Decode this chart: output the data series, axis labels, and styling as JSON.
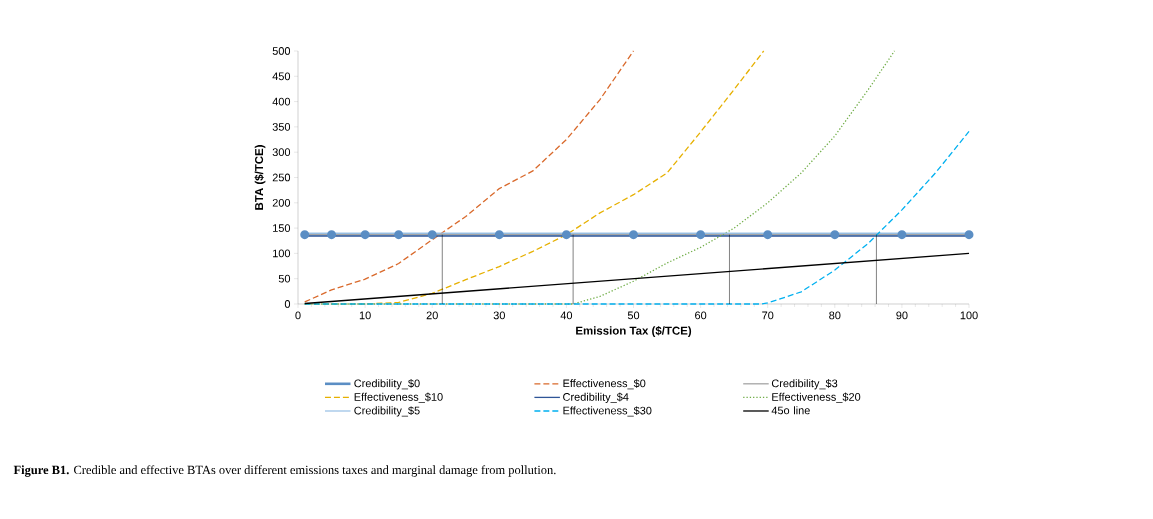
{
  "chart_data": {
    "type": "line",
    "xlabel": "Emission Tax ($/TCE)",
    "ylabel": "BTA ($/TCE)",
    "xlim": [
      0,
      100
    ],
    "xticks": [
      0,
      10,
      20,
      30,
      40,
      50,
      60,
      70,
      80,
      90,
      100
    ],
    "ylim": [
      0,
      500
    ],
    "yticks": [
      0,
      50,
      100,
      150,
      200,
      250,
      300,
      350,
      400,
      450,
      500
    ],
    "grid": false,
    "legend": "bottom",
    "line_style": "solid",
    "marker": "none",
    "series": [
      {
        "name": "Credibility_$0",
        "color": "#5b8ec4",
        "marker": "circle",
        "x": [
          1,
          5,
          10,
          15,
          20,
          30,
          40,
          50,
          60,
          70,
          80,
          90,
          100
        ],
        "values": [
          137,
          137,
          137,
          137,
          137,
          137,
          137,
          137,
          137,
          137,
          137,
          137,
          137
        ]
      },
      {
        "name": "Effectiveness_$0",
        "color": "#d9692b",
        "line_style": "dashed",
        "x": [
          1,
          5,
          10,
          15,
          20,
          25,
          30,
          35,
          40,
          45,
          50
        ],
        "values": [
          4,
          28,
          49,
          80,
          127,
          173,
          228,
          263,
          325,
          404,
          500
        ]
      },
      {
        "name": "Credibility_$3",
        "color": "#a5a5a5",
        "x": [
          1,
          100
        ],
        "values": [
          137,
          137
        ]
      },
      {
        "name": "Effectiveness_$10",
        "color": "#e6b000",
        "line_style": "dashed",
        "x": [
          1,
          10,
          15,
          20,
          25,
          30,
          35,
          40,
          45,
          50,
          55,
          60,
          65,
          69.4
        ],
        "values": [
          0,
          0,
          3,
          21,
          48,
          74,
          104,
          137,
          180,
          216,
          259,
          340,
          424,
          500
        ]
      },
      {
        "name": "Credibility_$4",
        "color": "#2f5597",
        "x": [
          1,
          100
        ],
        "values": [
          134,
          134
        ]
      },
      {
        "name": "Effectiveness_$20",
        "color": "#70ad47",
        "line_style": "dotted",
        "x": [
          1,
          41,
          45,
          50,
          55,
          60,
          65,
          70,
          75,
          80,
          85,
          88.9
        ],
        "values": [
          0,
          0,
          15,
          45,
          81,
          112,
          150,
          200,
          259,
          332,
          424,
          500
        ]
      },
      {
        "name": "Credibility_$5",
        "color": "#9dc3e6",
        "x": [
          1,
          100
        ],
        "values": [
          140,
          140
        ]
      },
      {
        "name": "Effectiveness_$30",
        "color": "#00b0f0",
        "line_style": "dashed",
        "x": [
          1,
          69,
          70,
          75,
          80,
          85,
          90,
          95,
          100
        ],
        "values": [
          0,
          0,
          2,
          24,
          67,
          120,
          186,
          259,
          341
        ]
      },
      {
        "name": "45o line",
        "color": "#000000",
        "x": [
          1,
          100
        ],
        "values": [
          1,
          100
        ]
      },
      {
        "color": "#000000",
        "x": [
          21.5,
          21.5
        ],
        "values": [
          0,
          137
        ]
      },
      {
        "color": "#000000",
        "x": [
          41,
          41
        ],
        "values": [
          0,
          137
        ]
      },
      {
        "color": "#000000",
        "x": [
          64.3,
          64.3
        ],
        "values": [
          0,
          137
        ]
      },
      {
        "color": "#000000",
        "x": [
          86.2,
          86.2
        ],
        "values": [
          0,
          137
        ]
      }
    ],
    "annotations": [
      "**Figure B1.** Credible and effective BTAs over different emissions taxes and marginal damage from pollution."
    ]
  }
}
